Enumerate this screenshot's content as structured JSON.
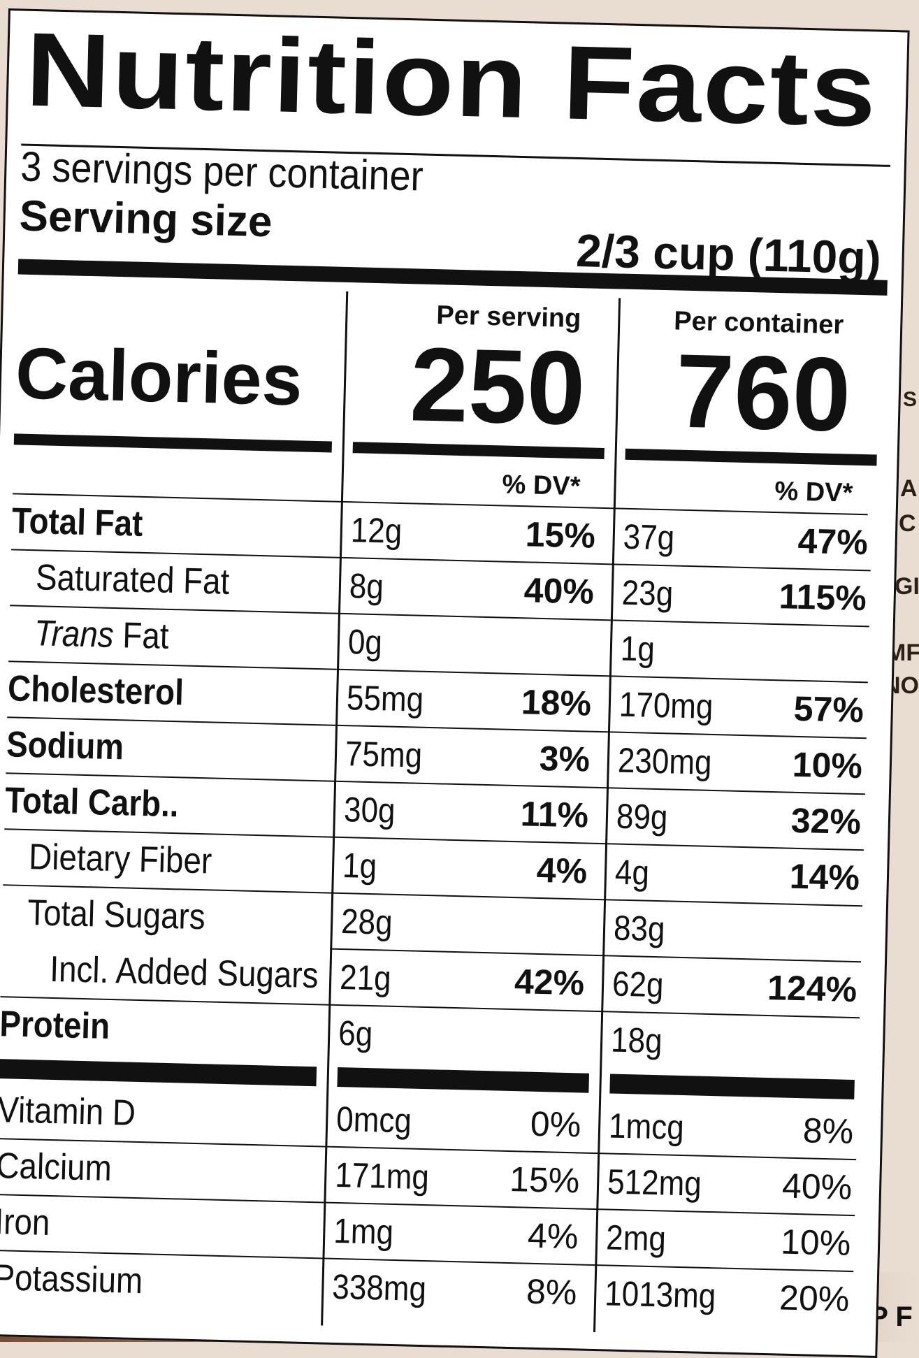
{
  "label": {
    "title": "Nutrition Facts",
    "servings_per_container": "3 servings per container",
    "serving_size_label": "Serving size",
    "serving_size_value": "2/3 cup (110g)",
    "calories_label": "Calories",
    "per_serving_label": "Per serving",
    "per_container_label": "Per container",
    "calories_per_serving": "250",
    "calories_per_container": "760",
    "dv_header": "% DV*",
    "nutrients": [
      {
        "name": "Total Fat",
        "style": "bold",
        "serving": "12g",
        "serving_dv": "15%",
        "container": "37g",
        "container_dv": "47%"
      },
      {
        "name": "Saturated Fat",
        "style": "ind1",
        "serving": "8g",
        "serving_dv": "40%",
        "container": "23g",
        "container_dv": "115%"
      },
      {
        "name_italic": "Trans",
        "name_rest": " Fat",
        "style": "ind1",
        "serving": "0g",
        "serving_dv": "",
        "container": "1g",
        "container_dv": ""
      },
      {
        "name": "Cholesterol",
        "style": "bold",
        "serving": "55mg",
        "serving_dv": "18%",
        "container": "170mg",
        "container_dv": "57%"
      },
      {
        "name": "Sodium",
        "style": "bold",
        "serving": "75mg",
        "serving_dv": "3%",
        "container": "230mg",
        "container_dv": "10%"
      },
      {
        "name": "Total Carb..",
        "style": "bold",
        "serving": "30g",
        "serving_dv": "11%",
        "container": "89g",
        "container_dv": "32%"
      },
      {
        "name": "Dietary Fiber",
        "style": "ind1",
        "serving": "1g",
        "serving_dv": "4%",
        "container": "4g",
        "container_dv": "14%"
      },
      {
        "name": "Total Sugars",
        "style": "ind1",
        "serving": "28g",
        "serving_dv": "",
        "container": "83g",
        "container_dv": ""
      },
      {
        "name": "Incl. Added Sugars",
        "style": "ind2",
        "serving": "21g",
        "serving_dv": "42%",
        "container": "62g",
        "container_dv": "124%"
      },
      {
        "name": "Protein",
        "style": "bold",
        "serving": "6g",
        "serving_dv": "",
        "container": "18g",
        "container_dv": ""
      }
    ],
    "vitamins": [
      {
        "name": "Vitamin D",
        "serving": "0mcg",
        "serving_dv": "0%",
        "container": "1mcg",
        "container_dv": "8%"
      },
      {
        "name": "Calcium",
        "serving": "171mg",
        "serving_dv": "15%",
        "container": "512mg",
        "container_dv": "40%"
      },
      {
        "name": "Iron",
        "serving": "1mg",
        "serving_dv": "4%",
        "container": "2mg",
        "container_dv": "10%"
      },
      {
        "name": "Potassium",
        "serving": "338mg",
        "serving_dv": "8%",
        "container": "1013mg",
        "container_dv": "20%"
      }
    ]
  },
  "side_fragments": [
    "S",
    "A",
    "C",
    "GI",
    "MF",
    "NOI"
  ],
  "bottom_text": "KEEP F"
}
